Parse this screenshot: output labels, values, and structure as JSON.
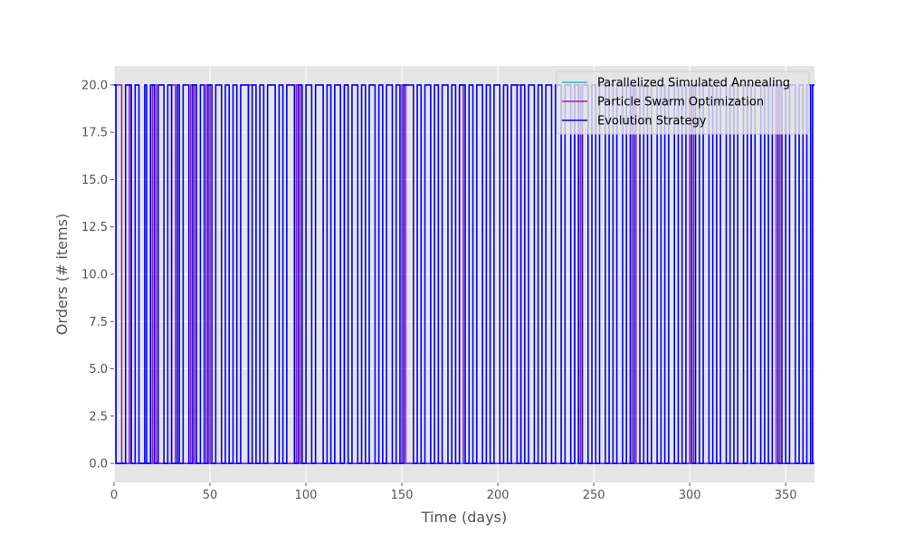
{
  "chart_data": {
    "type": "line",
    "title": "",
    "xlabel": "Time (days)",
    "ylabel": "Orders (# items)",
    "xlim": [
      0,
      365
    ],
    "ylim": [
      -1,
      21
    ],
    "xticks": [
      0,
      50,
      100,
      150,
      200,
      250,
      300,
      350
    ],
    "yticks": [
      0.0,
      2.5,
      5.0,
      7.5,
      10.0,
      12.5,
      15.0,
      17.5,
      20.0
    ],
    "grid": true,
    "legend_position": "top-right",
    "series": [
      {
        "name": "Parallelized Simulated Annealing",
        "color": "#17becf",
        "steps": [
          [
            0,
            20
          ],
          [
            1,
            0
          ],
          [
            365,
            0
          ]
        ]
      },
      {
        "name": "Particle Swarm Optimization",
        "color": "#9a1fb0",
        "steps": [
          [
            0,
            20
          ],
          [
            4,
            0
          ],
          [
            8,
            20
          ],
          [
            9,
            0
          ],
          [
            20,
            20
          ],
          [
            22,
            0
          ],
          [
            30,
            20
          ],
          [
            32,
            0
          ],
          [
            40,
            20
          ],
          [
            42,
            0
          ],
          [
            48,
            20
          ],
          [
            50,
            0
          ],
          [
            70,
            20
          ],
          [
            72,
            0
          ],
          [
            95,
            20
          ],
          [
            97,
            0
          ],
          [
            120,
            20
          ],
          [
            122,
            0
          ],
          [
            150,
            20
          ],
          [
            152,
            0
          ],
          [
            180,
            20
          ],
          [
            182,
            0
          ],
          [
            210,
            20
          ],
          [
            212,
            0
          ],
          [
            240,
            20
          ],
          [
            243,
            0
          ],
          [
            270,
            20
          ],
          [
            272,
            0
          ],
          [
            300,
            20
          ],
          [
            302,
            0
          ],
          [
            330,
            20
          ],
          [
            332,
            0
          ],
          [
            345,
            20
          ],
          [
            347,
            0
          ],
          [
            365,
            0
          ]
        ]
      },
      {
        "name": "Evolution Strategy",
        "color": "#0000ff",
        "steps": [
          [
            0,
            20
          ],
          [
            1,
            0
          ],
          [
            6,
            20
          ],
          [
            9,
            0
          ],
          [
            11,
            20
          ],
          [
            13,
            0
          ],
          [
            16,
            20
          ],
          [
            17,
            0
          ],
          [
            19,
            20
          ],
          [
            21,
            0
          ],
          [
            23,
            20
          ],
          [
            26,
            0
          ],
          [
            28,
            20
          ],
          [
            30,
            0
          ],
          [
            33,
            20
          ],
          [
            34,
            0
          ],
          [
            36,
            20
          ],
          [
            39,
            0
          ],
          [
            41,
            20
          ],
          [
            43,
            0
          ],
          [
            45,
            20
          ],
          [
            47,
            0
          ],
          [
            49,
            20
          ],
          [
            51,
            0
          ],
          [
            53,
            20
          ],
          [
            56,
            0
          ],
          [
            58,
            20
          ],
          [
            60,
            0
          ],
          [
            62,
            20
          ],
          [
            64,
            0
          ],
          [
            66,
            20
          ],
          [
            70,
            0
          ],
          [
            72,
            20
          ],
          [
            74,
            0
          ],
          [
            76,
            20
          ],
          [
            78,
            0
          ],
          [
            80,
            20
          ],
          [
            84,
            0
          ],
          [
            86,
            20
          ],
          [
            88,
            0
          ],
          [
            90,
            20
          ],
          [
            94,
            0
          ],
          [
            96,
            20
          ],
          [
            98,
            0
          ],
          [
            100,
            20
          ],
          [
            103,
            0
          ],
          [
            105,
            20
          ],
          [
            109,
            0
          ],
          [
            111,
            20
          ],
          [
            113,
            0
          ],
          [
            115,
            20
          ],
          [
            118,
            0
          ],
          [
            120,
            20
          ],
          [
            122,
            0
          ],
          [
            124,
            20
          ],
          [
            127,
            0
          ],
          [
            129,
            20
          ],
          [
            131,
            0
          ],
          [
            133,
            20
          ],
          [
            136,
            0
          ],
          [
            138,
            20
          ],
          [
            140,
            0
          ],
          [
            142,
            20
          ],
          [
            145,
            0
          ],
          [
            147,
            20
          ],
          [
            149,
            0
          ],
          [
            151,
            20
          ],
          [
            156,
            0
          ],
          [
            158,
            20
          ],
          [
            160,
            0
          ],
          [
            162,
            20
          ],
          [
            165,
            0
          ],
          [
            167,
            20
          ],
          [
            169,
            0
          ],
          [
            171,
            20
          ],
          [
            174,
            0
          ],
          [
            176,
            20
          ],
          [
            178,
            0
          ],
          [
            180,
            20
          ],
          [
            183,
            0
          ],
          [
            185,
            20
          ],
          [
            187,
            0
          ],
          [
            189,
            20
          ],
          [
            192,
            0
          ],
          [
            194,
            20
          ],
          [
            196,
            0
          ],
          [
            198,
            20
          ],
          [
            201,
            0
          ],
          [
            203,
            20
          ],
          [
            205,
            0
          ],
          [
            207,
            20
          ],
          [
            210,
            0
          ],
          [
            212,
            20
          ],
          [
            214,
            0
          ],
          [
            216,
            20
          ],
          [
            219,
            0
          ],
          [
            221,
            20
          ],
          [
            223,
            0
          ],
          [
            225,
            20
          ],
          [
            228,
            0
          ],
          [
            230,
            20
          ],
          [
            233,
            0
          ],
          [
            235,
            20
          ],
          [
            238,
            0
          ],
          [
            240,
            20
          ],
          [
            242,
            0
          ],
          [
            244,
            20
          ],
          [
            247,
            0
          ],
          [
            249,
            20
          ],
          [
            251,
            0
          ],
          [
            253,
            20
          ],
          [
            256,
            0
          ],
          [
            258,
            20
          ],
          [
            260,
            0
          ],
          [
            262,
            20
          ],
          [
            265,
            0
          ],
          [
            267,
            20
          ],
          [
            269,
            0
          ],
          [
            271,
            20
          ],
          [
            274,
            0
          ],
          [
            276,
            20
          ],
          [
            278,
            0
          ],
          [
            280,
            20
          ],
          [
            283,
            0
          ],
          [
            285,
            20
          ],
          [
            287,
            0
          ],
          [
            289,
            20
          ],
          [
            292,
            0
          ],
          [
            294,
            20
          ],
          [
            296,
            0
          ],
          [
            298,
            20
          ],
          [
            301,
            0
          ],
          [
            303,
            20
          ],
          [
            305,
            0
          ],
          [
            307,
            20
          ],
          [
            310,
            0
          ],
          [
            312,
            20
          ],
          [
            314,
            0
          ],
          [
            316,
            20
          ],
          [
            319,
            0
          ],
          [
            321,
            20
          ],
          [
            323,
            0
          ],
          [
            325,
            20
          ],
          [
            328,
            0
          ],
          [
            330,
            20
          ],
          [
            332,
            0
          ],
          [
            334,
            20
          ],
          [
            337,
            0
          ],
          [
            339,
            20
          ],
          [
            341,
            0
          ],
          [
            343,
            20
          ],
          [
            346,
            0
          ],
          [
            348,
            20
          ],
          [
            350,
            0
          ],
          [
            352,
            20
          ],
          [
            355,
            0
          ],
          [
            357,
            20
          ],
          [
            359,
            0
          ],
          [
            361,
            20
          ],
          [
            363,
            0
          ],
          [
            364,
            20
          ],
          [
            365,
            20
          ]
        ]
      }
    ]
  }
}
